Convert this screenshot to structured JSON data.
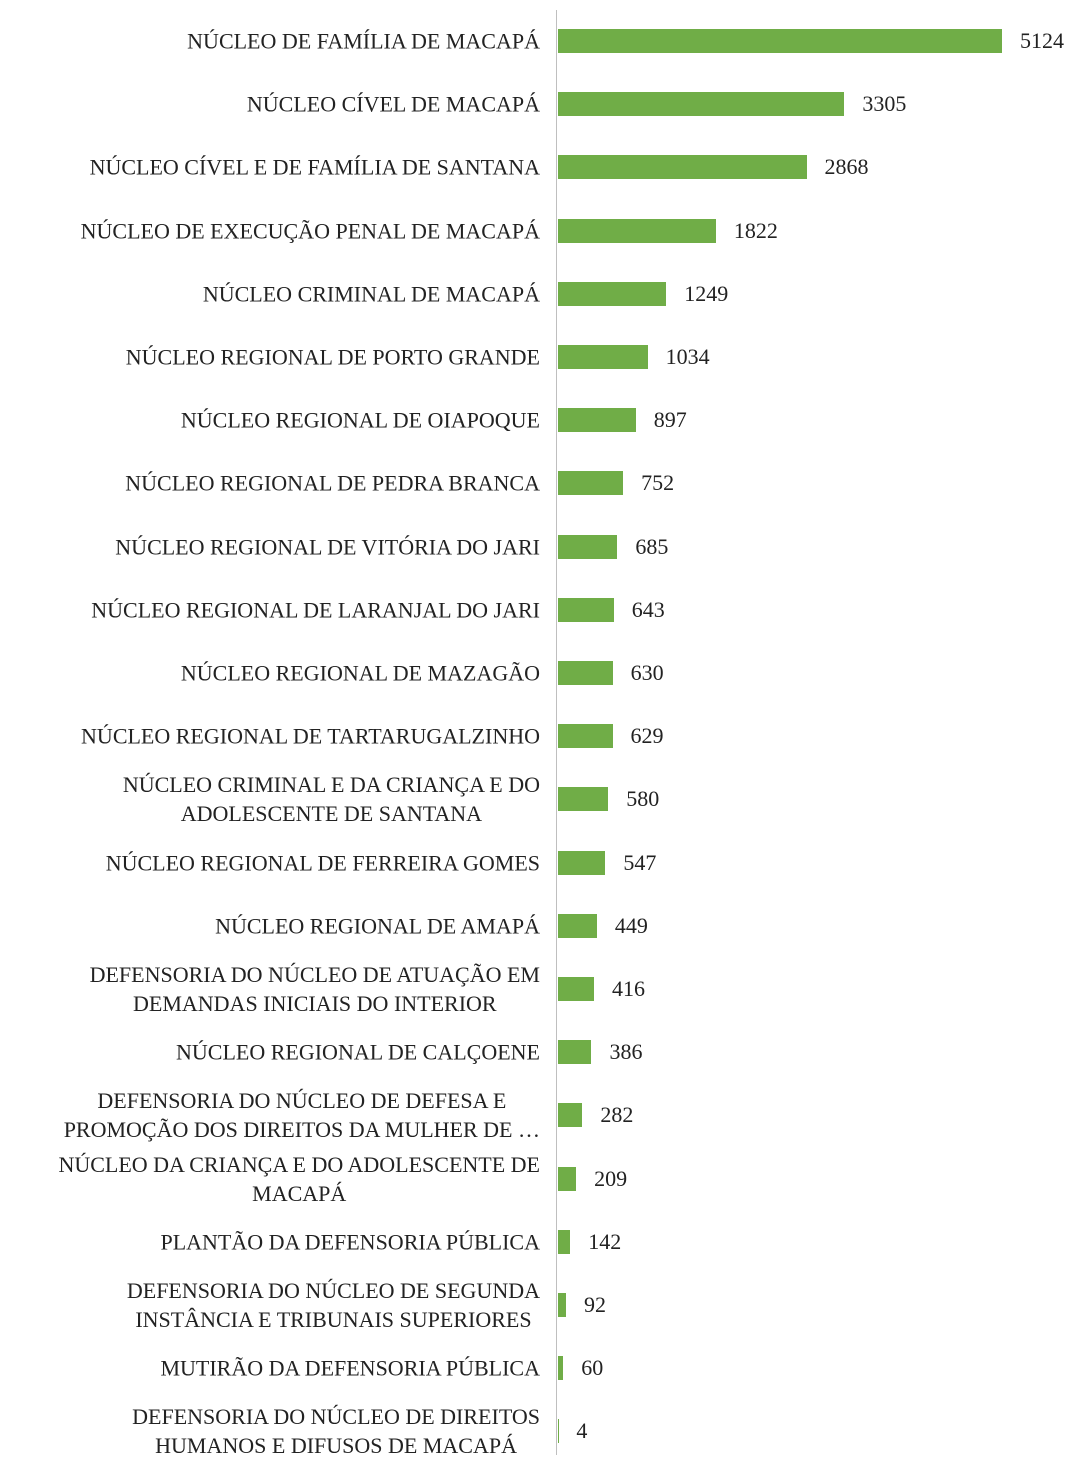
{
  "chart_data": {
    "type": "bar",
    "orientation": "horizontal",
    "color": "#70ad47",
    "categories": [
      "NÚCLEO DE FAMÍLIA DE MACAPÁ",
      "NÚCLEO CÍVEL DE MACAPÁ",
      "NÚCLEO CÍVEL E DE FAMÍLIA DE SANTANA",
      "NÚCLEO DE EXECUÇÃO PENAL DE MACAPÁ",
      "NÚCLEO CRIMINAL DE MACAPÁ",
      "NÚCLEO REGIONAL DE PORTO GRANDE",
      "NÚCLEO REGIONAL DE OIAPOQUE",
      "NÚCLEO REGIONAL DE PEDRA BRANCA",
      "NÚCLEO REGIONAL DE VITÓRIA DO JARI",
      "NÚCLEO REGIONAL DE LARANJAL DO JARI",
      "NÚCLEO REGIONAL DE MAZAGÃO",
      "NÚCLEO REGIONAL DE TARTARUGALZINHO",
      "NÚCLEO CRIMINAL E DA CRIANÇA E DO\nADOLESCENTE DE SANTANA",
      "NÚCLEO REGIONAL DE FERREIRA GOMES",
      "NÚCLEO REGIONAL DE AMAPÁ",
      "DEFENSORIA DO NÚCLEO DE ATUAÇÃO EM\nDEMANDAS INICIAIS DO INTERIOR",
      "NÚCLEO REGIONAL DE CALÇOENE",
      "DEFENSORIA DO NÚCLEO DE DEFESA E\nPROMOÇÃO DOS DIREITOS DA MULHER DE …",
      "NÚCLEO DA CRIANÇA E DO ADOLESCENTE DE\nMACAPÁ",
      "PLANTÃO DA DEFENSORIA PÚBLICA",
      "DEFENSORIA DO NÚCLEO DE SEGUNDA\nINSTÂNCIA E TRIBUNAIS SUPERIORES",
      "MUTIRÃO DA DEFENSORIA PÚBLICA",
      "DEFENSORIA DO NÚCLEO DE DIREITOS\nHUMANOS E DIFUSOS DE MACAPÁ"
    ],
    "values": [
      5124,
      3305,
      2868,
      1822,
      1249,
      1034,
      897,
      752,
      685,
      643,
      630,
      629,
      580,
      547,
      449,
      416,
      386,
      282,
      209,
      142,
      92,
      60,
      4
    ]
  }
}
